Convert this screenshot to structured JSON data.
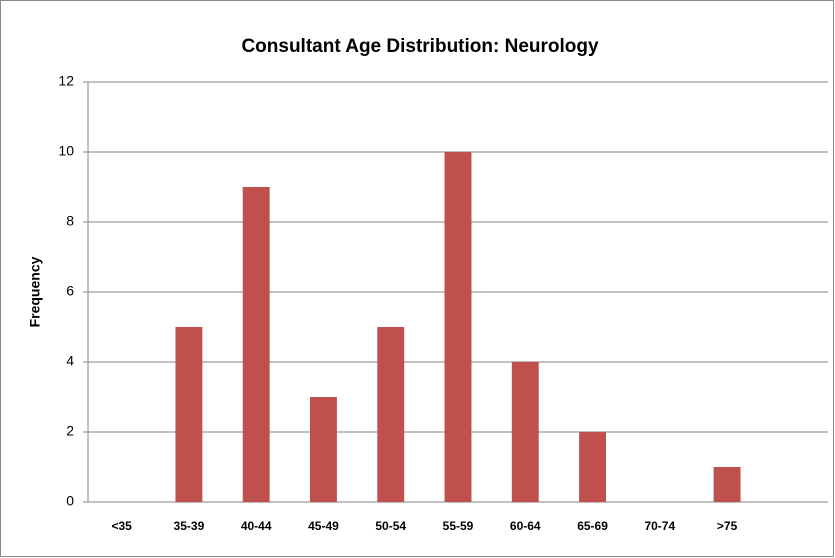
{
  "chart_data": {
    "type": "bar",
    "title": "Consultant Age Distribution: Neurology",
    "y_label": "Frequency",
    "categories": [
      "<35",
      "35-39",
      "40-44",
      "45-49",
      "50-54",
      "55-59",
      "60-64",
      "65-69",
      "70-74",
      ">75",
      null
    ],
    "values": [
      0,
      5,
      9,
      3,
      5,
      10,
      4,
      2,
      0,
      1,
      null
    ],
    "color": "#c0504d",
    "ylim": [
      0,
      12
    ],
    "yticks": [
      0,
      2,
      4,
      6,
      8,
      10,
      12
    ],
    "grid": true
  }
}
